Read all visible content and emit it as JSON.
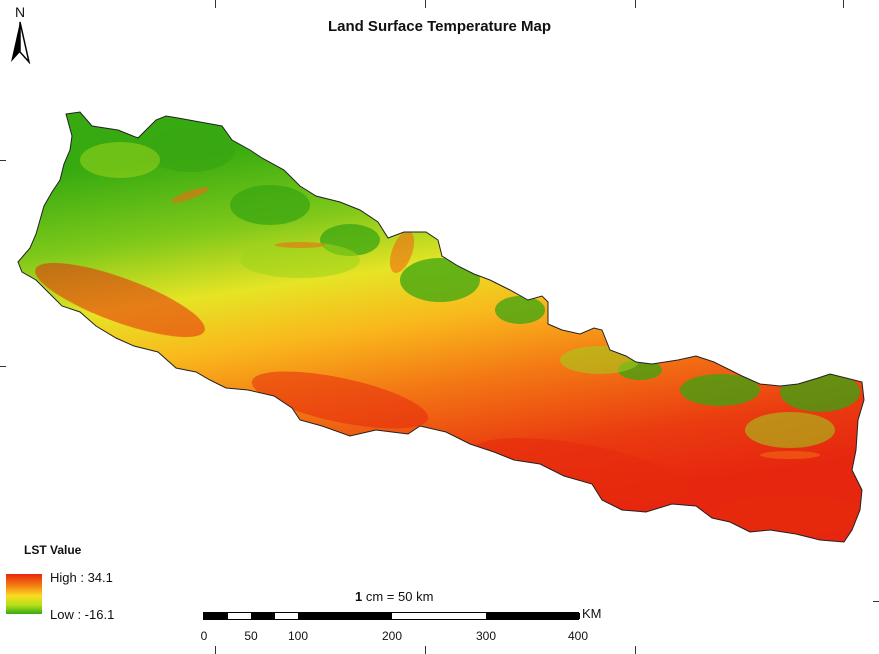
{
  "map": {
    "title": "Land Surface Temperature Map",
    "north_label": "N",
    "legend": {
      "title": "LST Value",
      "high_label": "High : 34.1",
      "low_label": "Low : -16.1",
      "colors": {
        "high": "#e8260f",
        "mid_high": "#f47a12",
        "mid": "#fadc22",
        "mid_low": "#b4e01a",
        "low": "#36aa10"
      }
    },
    "scale": {
      "ratio_value": "1",
      "ratio_text": "cm = 50 km",
      "unit": "KM",
      "labels": [
        "0",
        "50",
        "100",
        "200",
        "300",
        "400"
      ]
    }
  }
}
